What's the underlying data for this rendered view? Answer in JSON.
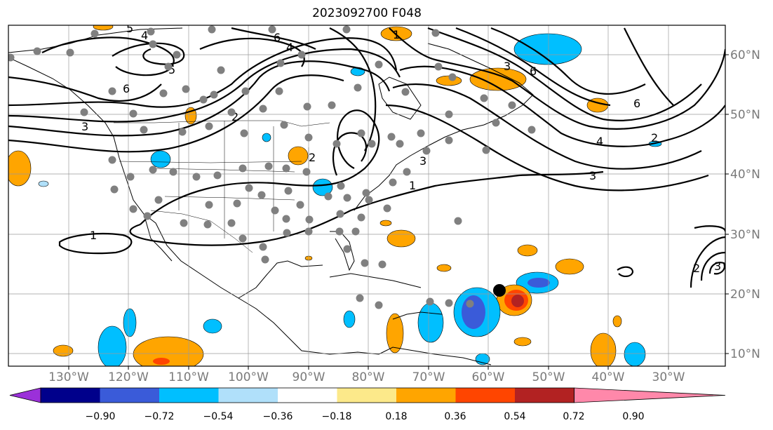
{
  "title": "2023092700 F048",
  "map": {
    "lon_labels": [
      "130°W",
      "120°W",
      "110°W",
      "100°W",
      "90°W",
      "80°W",
      "70°W",
      "60°W",
      "50°W",
      "40°W",
      "30°W"
    ],
    "lat_labels": [
      "60°N",
      "50°N",
      "40°N",
      "30°N",
      "20°N",
      "10°N"
    ],
    "contour_labels": [
      "5",
      "4",
      "5",
      "6",
      "4",
      "6",
      "2",
      "3",
      "6",
      "1",
      "3",
      "1",
      "3",
      "2",
      "6",
      "4",
      "2",
      "3",
      "1",
      "2",
      "3"
    ]
  },
  "colorbar": {
    "tick_labels": [
      "−0.90",
      "−0.72",
      "−0.54",
      "−0.36",
      "−0.18",
      "0.18",
      "0.36",
      "0.54",
      "0.72",
      "0.90"
    ],
    "colors": [
      "#9b30d9",
      "#00008b",
      "#3a5bd9",
      "#00bfff",
      "#b0e0fa",
      "#ffffff",
      "#fce98a",
      "#ffa500",
      "#ff4500",
      "#b22222",
      "#ff88aa"
    ]
  },
  "colors": {
    "land": "#ffffff",
    "coast": "#000000",
    "grid": "#9a9a9a",
    "obs_points": "#808080",
    "storm_marker": "#000000"
  }
}
